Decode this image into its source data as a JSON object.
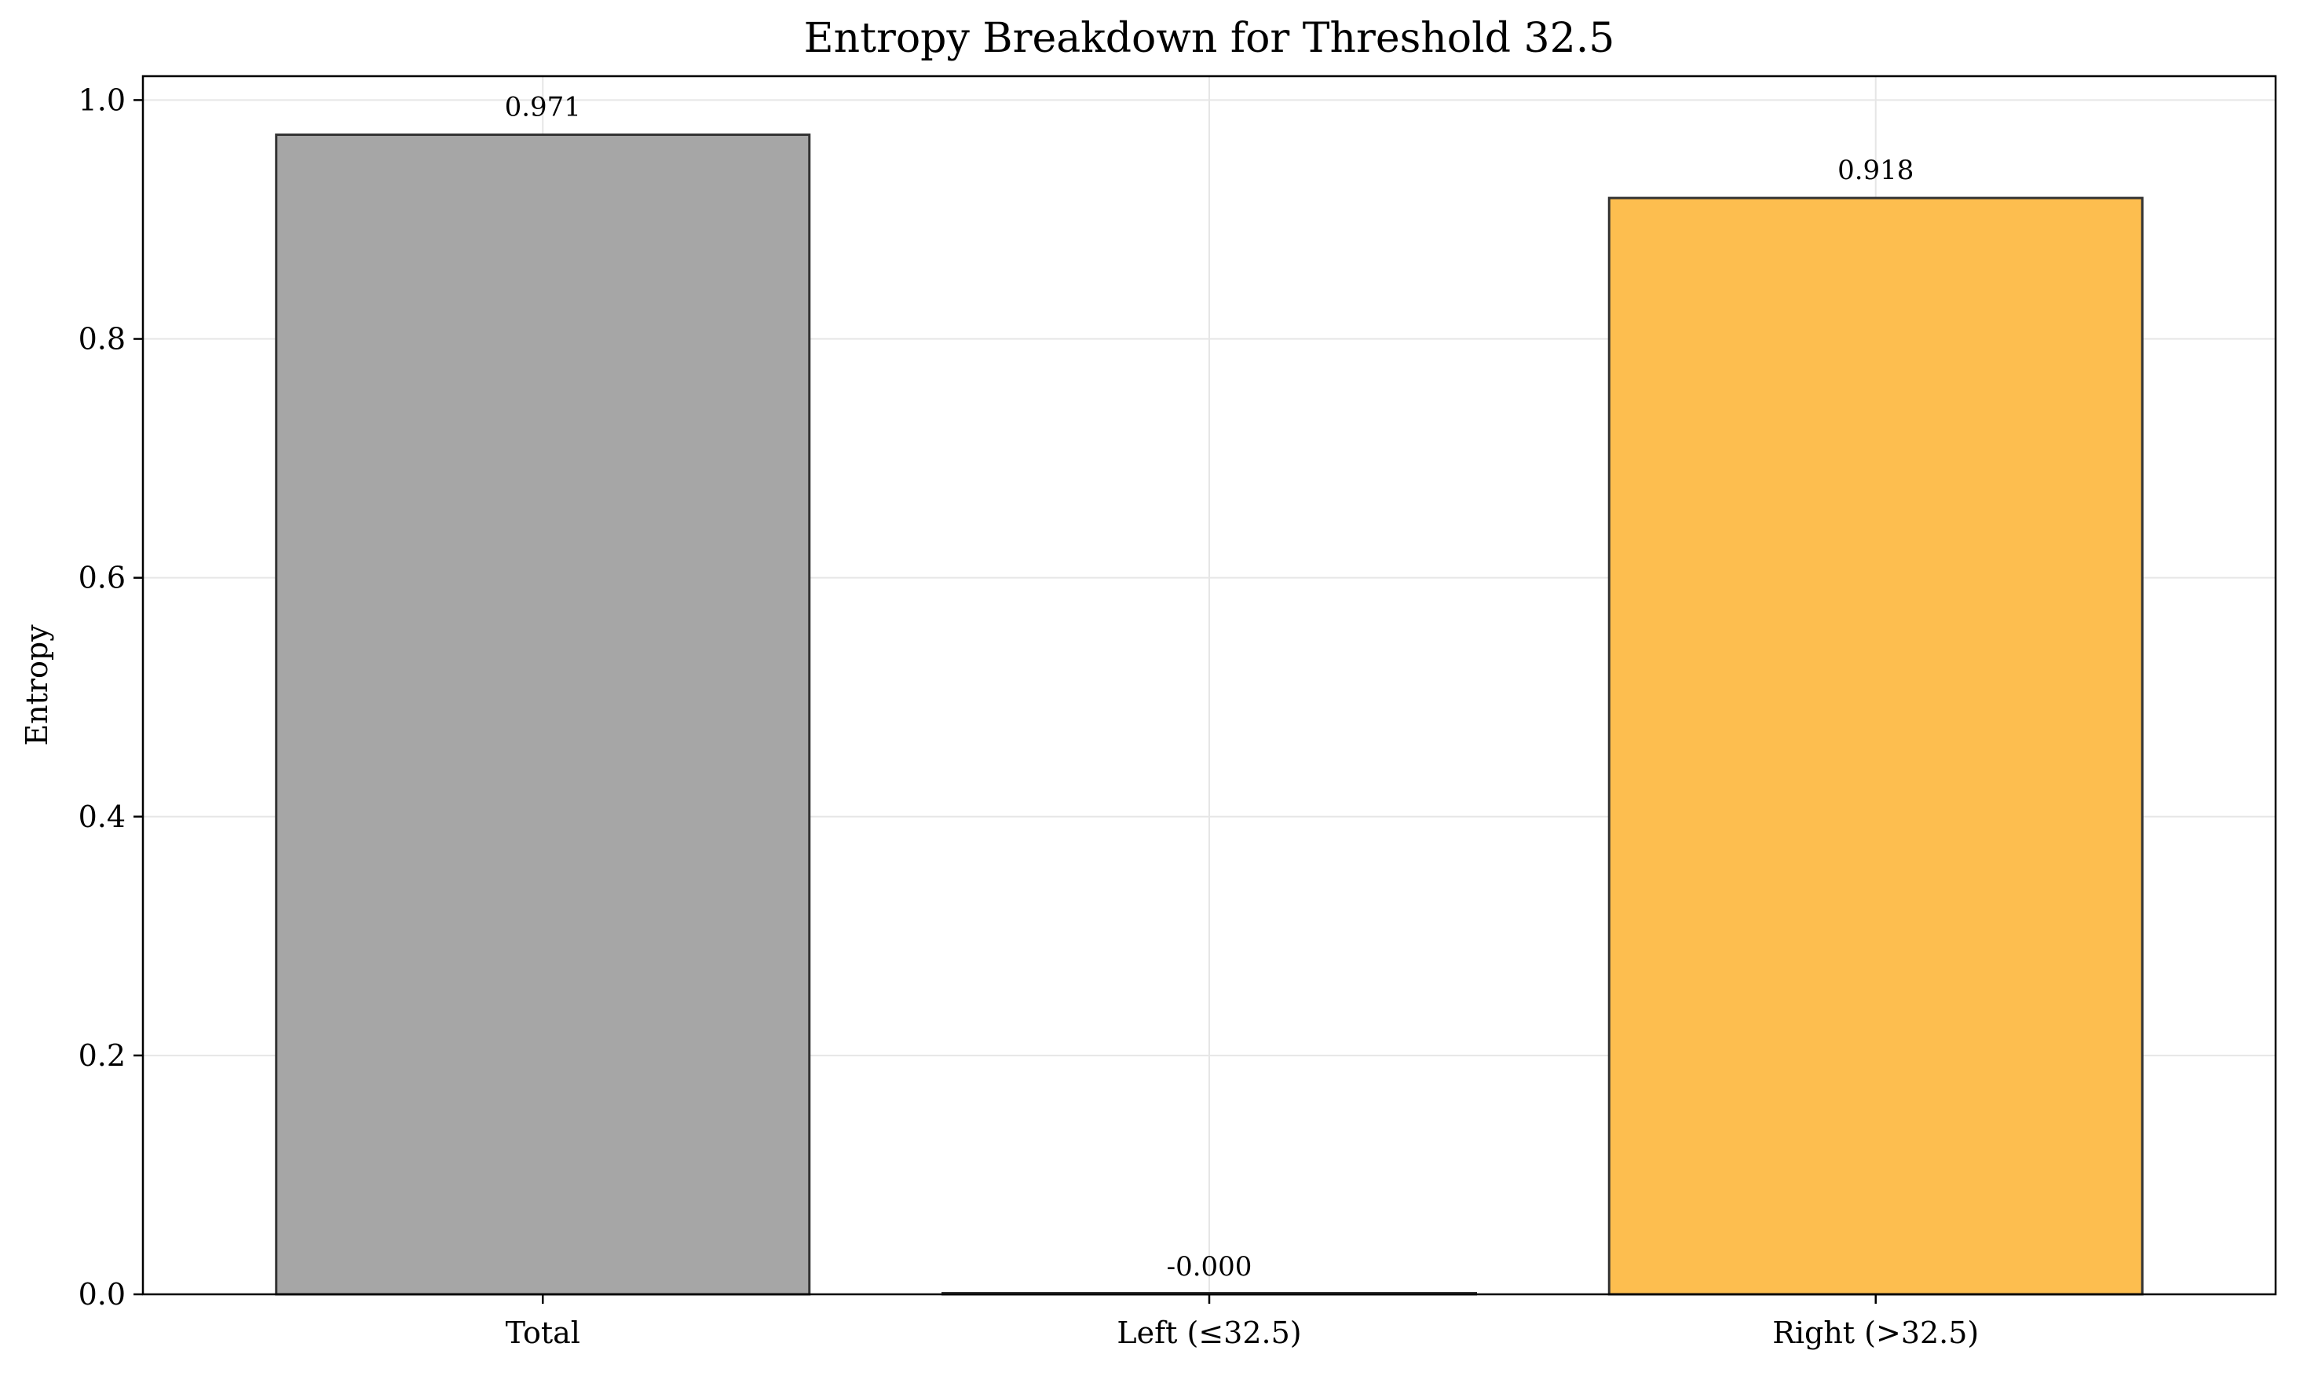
{
  "chart_data": {
    "type": "bar",
    "title": "Entropy Breakdown for Threshold 32.5",
    "xlabel": "",
    "ylabel": "Entropy",
    "categories": [
      "Total",
      "Left (≤32.5)",
      "Right (>32.5)"
    ],
    "values": [
      0.971,
      0.0,
      0.918
    ],
    "data_labels": [
      "0.971",
      "-0.000",
      "0.918"
    ],
    "ylim": [
      0,
      1.02
    ],
    "yticks": [
      0.0,
      0.2,
      0.4,
      0.6,
      0.8,
      1.0
    ],
    "ytick_labels": [
      "0.0",
      "0.2",
      "0.4",
      "0.6",
      "0.8",
      "1.0"
    ],
    "grid": true,
    "bar_colors": [
      "#a6a6a6",
      "#9ecae1",
      "#fdbe4f"
    ],
    "bar_edge_color": "#333333",
    "grid_color": "#e6e6e6"
  }
}
